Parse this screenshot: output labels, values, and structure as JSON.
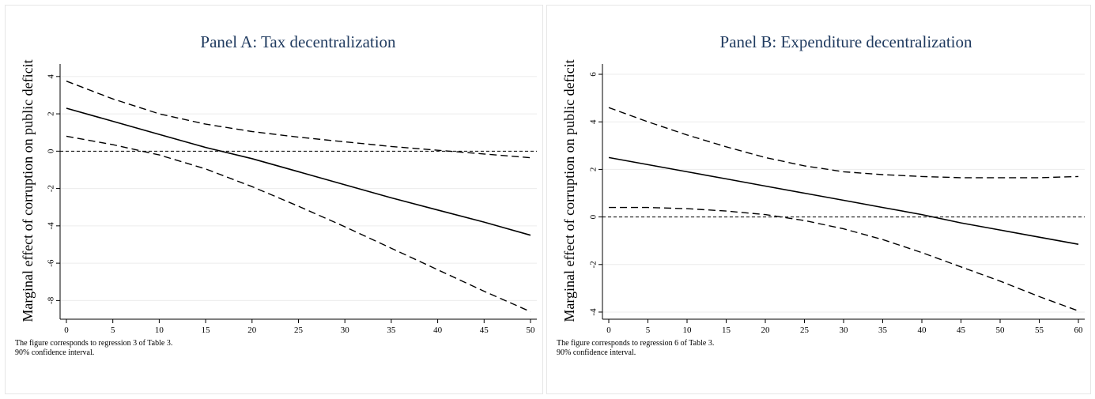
{
  "chart_data": [
    {
      "type": "line",
      "title": "Panel A: Tax decentralization",
      "xlabel": "Tax decentralization",
      "ylabel": "Marginal effect of corruption on public deficit",
      "xlim": [
        0,
        50
      ],
      "ylim": [
        -9,
        4.5
      ],
      "xticks": [
        "0",
        "5",
        "10",
        "15",
        "20",
        "25",
        "30",
        "35",
        "40",
        "45",
        "50"
      ],
      "yticks": [
        "4",
        "2",
        "0",
        "-2",
        "-4",
        "-6",
        "-8"
      ],
      "grid": true,
      "x": [
        0,
        5,
        10,
        15,
        20,
        25,
        30,
        35,
        40,
        45,
        50
      ],
      "series": [
        {
          "style": "solid",
          "values": [
            2.3,
            1.6,
            0.9,
            0.2,
            -0.4,
            -1.1,
            -1.8,
            -2.5,
            -3.15,
            -3.8,
            -4.5
          ]
        },
        {
          "style": "dashed",
          "values": [
            3.75,
            2.8,
            2.0,
            1.45,
            1.05,
            0.75,
            0.5,
            0.25,
            0.05,
            -0.15,
            -0.35
          ]
        },
        {
          "style": "dashed",
          "values": [
            0.8,
            0.35,
            -0.2,
            -0.95,
            -1.9,
            -2.95,
            -4.05,
            -5.2,
            -6.35,
            -7.5,
            -8.6
          ]
        }
      ],
      "reference_line": 0,
      "notes": [
        "The figure corresponds to regression 3 of Table 3.",
        "90% confidence interval."
      ]
    },
    {
      "type": "line",
      "title": "Panel B: Expenditure decentralization",
      "xlabel": "Expenditure decentralization",
      "ylabel": "Marginal effect of corruption on public deficit",
      "xlim": [
        0,
        60
      ],
      "ylim": [
        -4.3,
        6.3
      ],
      "xticks": [
        "0",
        "5",
        "10",
        "15",
        "20",
        "25",
        "30",
        "35",
        "40",
        "45",
        "50",
        "55",
        "60"
      ],
      "yticks": [
        "6",
        "4",
        "2",
        "0",
        "-2",
        "-4"
      ],
      "grid": true,
      "x": [
        0,
        5,
        10,
        15,
        20,
        25,
        30,
        35,
        40,
        45,
        50,
        55,
        60
      ],
      "series": [
        {
          "style": "solid",
          "values": [
            2.5,
            2.2,
            1.9,
            1.6,
            1.3,
            1.0,
            0.7,
            0.4,
            0.1,
            -0.25,
            -0.55,
            -0.85,
            -1.15
          ]
        },
        {
          "style": "dashed",
          "values": [
            4.6,
            4.0,
            3.45,
            2.95,
            2.5,
            2.15,
            1.9,
            1.78,
            1.7,
            1.65,
            1.65,
            1.65,
            1.7
          ]
        },
        {
          "style": "dashed",
          "values": [
            0.4,
            0.4,
            0.35,
            0.25,
            0.1,
            -0.15,
            -0.5,
            -0.95,
            -1.5,
            -2.1,
            -2.7,
            -3.35,
            -3.95
          ]
        }
      ],
      "reference_line": 0,
      "notes": [
        "The figure corresponds to regression 6 of Table 3.",
        "90% confidence interval."
      ]
    }
  ]
}
